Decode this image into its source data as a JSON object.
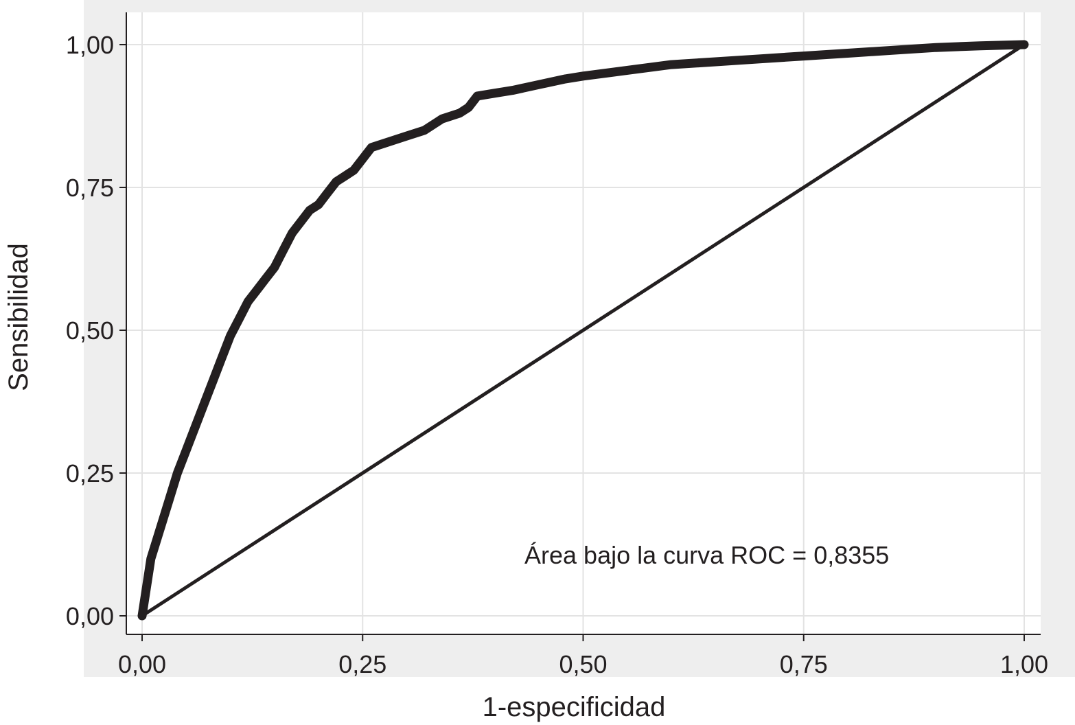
{
  "chart_data": {
    "type": "line",
    "title": "",
    "xlabel": "1-especificidad",
    "ylabel": "Sensibilidad",
    "xlim": [
      0,
      1
    ],
    "ylim": [
      0,
      1
    ],
    "grid": true,
    "x_ticks": [
      0,
      0.25,
      0.5,
      0.75,
      1
    ],
    "x_tick_labels": [
      "0,00",
      "0,25",
      "0,50",
      "0,75",
      "1,00"
    ],
    "y_ticks": [
      0,
      0.25,
      0.5,
      0.75,
      1
    ],
    "y_tick_labels": [
      "0,00",
      "0,25",
      "0,50",
      "0,75",
      "1,00"
    ],
    "annotation": "Área bajo la curva ROC = 0,8355",
    "colors": {
      "frame_bg": "#eeeeee",
      "plot_bg": "#ffffff",
      "grid": "#e3e3e3",
      "line": "#231f20",
      "text": "#231f20"
    },
    "series": [
      {
        "x": [
          0,
          0.005,
          0.01,
          0.02,
          0.03,
          0.04,
          0.05,
          0.06,
          0.07,
          0.08,
          0.09,
          0.1,
          0.11,
          0.12,
          0.13,
          0.14,
          0.15,
          0.16,
          0.17,
          0.18,
          0.19,
          0.2,
          0.21,
          0.22,
          0.23,
          0.24,
          0.25,
          0.26,
          0.28,
          0.3,
          0.32,
          0.34,
          0.36,
          0.37,
          0.38,
          0.4,
          0.42,
          0.45,
          0.48,
          0.5,
          0.55,
          0.6,
          0.65,
          0.7,
          0.75,
          0.8,
          0.85,
          0.9,
          0.95,
          1.0
        ],
        "y": [
          0,
          0.05,
          0.1,
          0.15,
          0.2,
          0.25,
          0.29,
          0.33,
          0.37,
          0.41,
          0.45,
          0.49,
          0.52,
          0.55,
          0.57,
          0.59,
          0.61,
          0.64,
          0.67,
          0.69,
          0.71,
          0.72,
          0.74,
          0.76,
          0.77,
          0.78,
          0.8,
          0.82,
          0.83,
          0.84,
          0.85,
          0.87,
          0.88,
          0.89,
          0.91,
          0.915,
          0.92,
          0.93,
          0.94,
          0.945,
          0.955,
          0.965,
          0.97,
          0.975,
          0.98,
          0.985,
          0.99,
          0.995,
          0.998,
          1.0
        ]
      },
      {
        "x": [
          0,
          1
        ],
        "y": [
          0,
          1
        ]
      }
    ]
  }
}
